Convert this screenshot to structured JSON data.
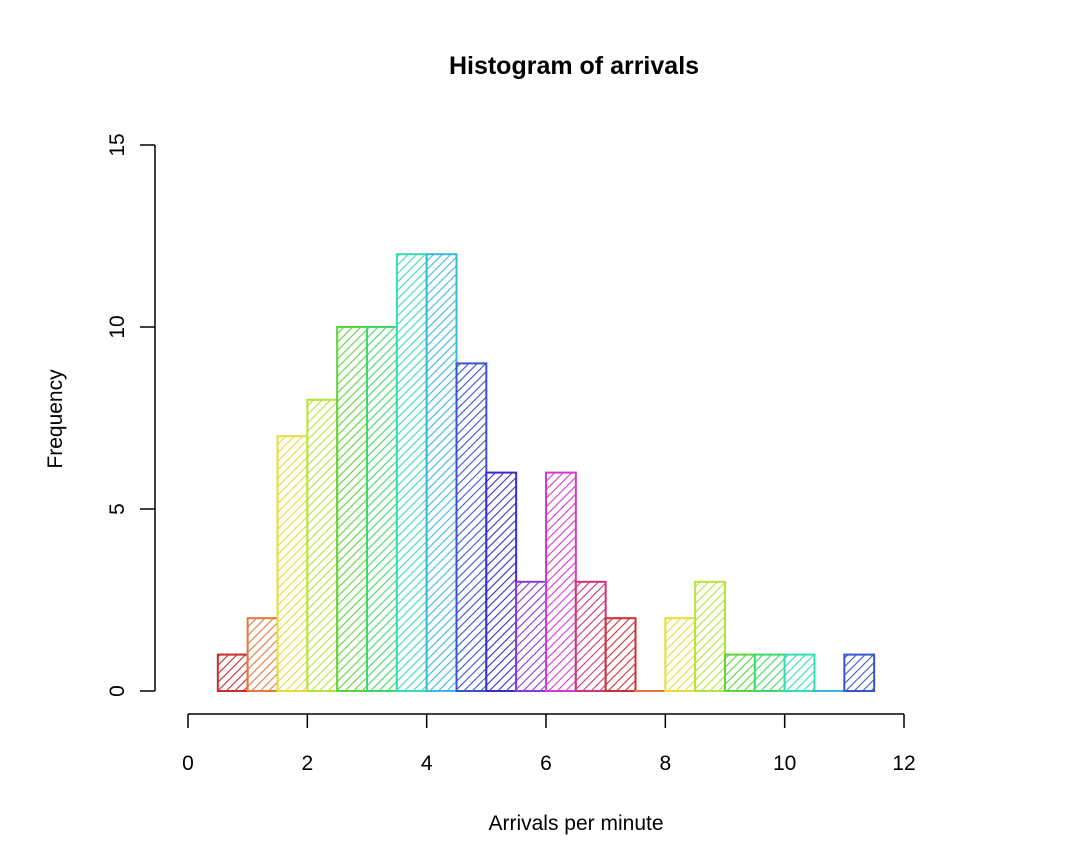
{
  "chart_data": {
    "type": "bar",
    "title": "Histogram of arrivals",
    "xlabel": "Arrivals per minute",
    "ylabel": "Frequency",
    "xlim": [
      0,
      12
    ],
    "ylim": [
      0,
      15
    ],
    "x_ticks": [
      "0",
      "2",
      "4",
      "6",
      "8",
      "10",
      "12"
    ],
    "y_ticks": [
      "0",
      "5",
      "10",
      "15"
    ],
    "grid": false,
    "fill_pattern": "diagonal hatching, rainbow palette",
    "bins": [
      {
        "start": 0.5,
        "end": 1.0,
        "count": 1,
        "color": "#cc2b2b"
      },
      {
        "start": 1.0,
        "end": 1.5,
        "count": 2,
        "color": "#e07a3c"
      },
      {
        "start": 1.5,
        "end": 2.0,
        "count": 7,
        "color": "#e8dc3a"
      },
      {
        "start": 2.0,
        "end": 2.5,
        "count": 8,
        "color": "#b7e23c"
      },
      {
        "start": 2.5,
        "end": 3.0,
        "count": 10,
        "color": "#5ad63a"
      },
      {
        "start": 3.0,
        "end": 3.5,
        "count": 10,
        "color": "#3fd96a"
      },
      {
        "start": 3.5,
        "end": 4.0,
        "count": 12,
        "color": "#38dcb4"
      },
      {
        "start": 4.0,
        "end": 4.5,
        "count": 12,
        "color": "#38b9dc"
      },
      {
        "start": 4.5,
        "end": 5.0,
        "count": 9,
        "color": "#3a55cc"
      },
      {
        "start": 5.0,
        "end": 5.5,
        "count": 6,
        "color": "#3a2fc4"
      },
      {
        "start": 5.5,
        "end": 6.0,
        "count": 3,
        "color": "#8b3ad6"
      },
      {
        "start": 6.0,
        "end": 6.5,
        "count": 6,
        "color": "#d63ad0"
      },
      {
        "start": 6.5,
        "end": 7.0,
        "count": 3,
        "color": "#d2337a"
      },
      {
        "start": 7.0,
        "end": 7.5,
        "count": 2,
        "color": "#cc2f36"
      },
      {
        "start": 7.5,
        "end": 8.0,
        "count": 0,
        "color": "#e07a3c"
      },
      {
        "start": 8.0,
        "end": 8.5,
        "count": 2,
        "color": "#e8dc3a"
      },
      {
        "start": 8.5,
        "end": 9.0,
        "count": 3,
        "color": "#b7e23c"
      },
      {
        "start": 9.0,
        "end": 9.5,
        "count": 1,
        "color": "#5ad63a"
      },
      {
        "start": 9.5,
        "end": 10.0,
        "count": 1,
        "color": "#3fd96a"
      },
      {
        "start": 10.0,
        "end": 10.5,
        "count": 1,
        "color": "#38dcb4"
      },
      {
        "start": 10.5,
        "end": 11.0,
        "count": 0,
        "color": "#38b9dc"
      },
      {
        "start": 11.0,
        "end": 11.5,
        "count": 1,
        "color": "#3a55cc"
      }
    ]
  }
}
